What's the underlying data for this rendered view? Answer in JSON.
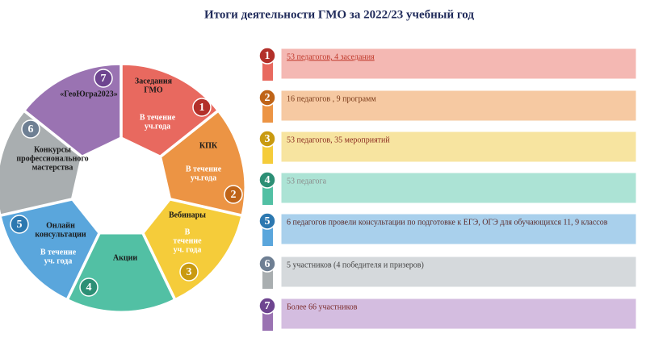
{
  "title": "Итоги деятельности ГМО за 2022/23 учебный год",
  "segments": [
    {
      "name": [
        "Заседания",
        "ГМО"
      ],
      "period": [
        "В течение",
        "уч.года"
      ]
    },
    {
      "name": [
        "КПК"
      ],
      "period": [
        "В течение",
        "уч.года"
      ]
    },
    {
      "name": [
        "Вебинары"
      ],
      "period": [
        "В",
        "течение",
        "уч. года"
      ]
    },
    {
      "name": [
        "Акции"
      ]
    },
    {
      "name": [
        "Онлайн",
        "консультации"
      ],
      "period": [
        "В течение",
        "уч. года"
      ]
    },
    {
      "name": [
        "Конкурсы",
        "профессионального",
        "мастерства"
      ]
    },
    {
      "name": [
        "«ГеоЮгра2023»"
      ]
    }
  ],
  "items": [
    {
      "number": "1",
      "text": "53 педагогов, 4 заседания"
    },
    {
      "number": "2",
      "text": "16 педагогов ,  9 программ"
    },
    {
      "number": "3",
      "text": "53 педагогов, 35 мероприятий"
    },
    {
      "number": "4",
      "text": "53 педагога"
    },
    {
      "number": "5",
      "text": "6 педагогов провели консультации по подготовке к ЕГЭ, ОГЭ для обучающихся 11, 9 классов"
    },
    {
      "number": "6",
      "text": "5 участников (4 победителя и призеров)"
    },
    {
      "number": "7",
      "text": "Более 66 участников"
    }
  ]
}
